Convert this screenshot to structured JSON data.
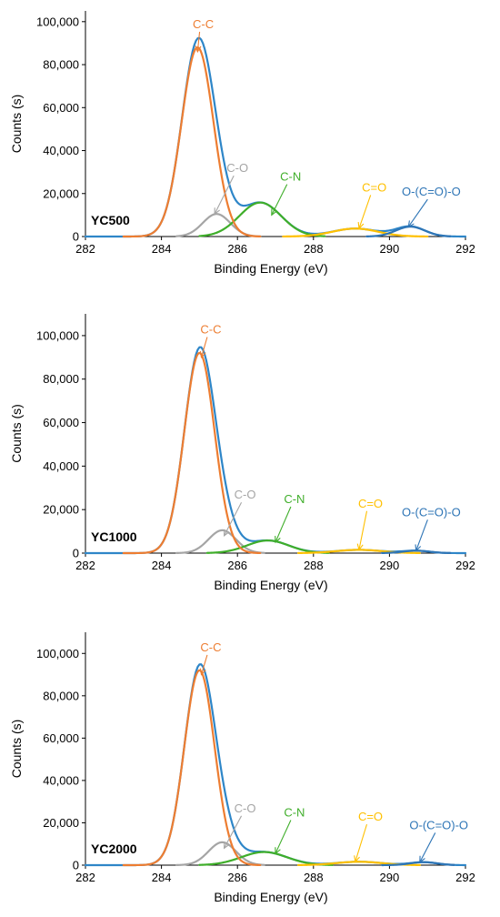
{
  "colors": {
    "envelope": "#2E86C8",
    "C-C": "#ED7D31",
    "C-O": "#A5A5A5",
    "C-N": "#3FAE2A",
    "C=O": "#FFC000",
    "O-(C=O)-O": "#2E75B6",
    "axis": "#000000"
  },
  "chart_data": [
    {
      "type": "line",
      "panel_label": "YC500",
      "xlabel": "Binding Energy (eV)",
      "ylabel": "Counts (s)",
      "xlim": [
        282,
        292
      ],
      "ylim": [
        0,
        105000
      ],
      "xticks": [
        "282",
        "284",
        "286",
        "288",
        "290",
        "292"
      ],
      "yticks": [
        "0",
        "20,000",
        "40,000",
        "60,000",
        "80,000",
        "100,000"
      ],
      "grid": false,
      "components": [
        {
          "name": "C-C",
          "center": 284.95,
          "amplitude": 88000,
          "sigma": 0.42,
          "range": [
            283.0,
            286.6
          ]
        },
        {
          "name": "C-O",
          "center": 285.45,
          "amplitude": 10500,
          "sigma": 0.36,
          "range": [
            284.4,
            286.6
          ]
        },
        {
          "name": "C-N",
          "center": 286.6,
          "amplitude": 15800,
          "sigma": 0.55,
          "range": [
            285.0,
            288.3
          ]
        },
        {
          "name": "C=O",
          "center": 289.1,
          "amplitude": 3700,
          "sigma": 0.6,
          "range": [
            287.2,
            291.0
          ]
        },
        {
          "name": "O-(C=O)-O",
          "center": 290.55,
          "amplitude": 4600,
          "sigma": 0.38,
          "range": [
            289.4,
            291.6
          ]
        }
      ],
      "envelope": {
        "peak": 90500
      },
      "annotations": [
        {
          "text": "C-C",
          "component": "C-C",
          "label_x": 285.1,
          "label_y": 97000,
          "target_x": 284.95,
          "target_y": 86000
        },
        {
          "text": "C-O",
          "component": "C-O",
          "label_x": 286.0,
          "label_y": 30000,
          "target_x": 285.4,
          "target_y": 10500
        },
        {
          "text": "C-N",
          "component": "C-N",
          "label_x": 287.4,
          "label_y": 26000,
          "target_x": 286.9,
          "target_y": 10000
        },
        {
          "text": "C=O",
          "component": "C=O",
          "label_x": 289.6,
          "label_y": 21000,
          "target_x": 289.2,
          "target_y": 3800
        },
        {
          "text": "O-(C=O)-O",
          "component": "O-(C=O)-O",
          "label_x": 291.1,
          "label_y": 19000,
          "target_x": 290.5,
          "target_y": 4500
        }
      ]
    },
    {
      "type": "line",
      "panel_label": "YC1000",
      "xlabel": "Binding Energy (eV)",
      "ylabel": "Counts (s)",
      "xlim": [
        282,
        292
      ],
      "ylim": [
        0,
        110000
      ],
      "xticks": [
        "282",
        "284",
        "286",
        "288",
        "290",
        "292"
      ],
      "yticks": [
        "0",
        "20,000",
        "40,000",
        "60,000",
        "80,000",
        "100,000"
      ],
      "grid": false,
      "components": [
        {
          "name": "C-C",
          "center": 285.0,
          "amplitude": 92000,
          "sigma": 0.4,
          "range": [
            283.0,
            286.6
          ]
        },
        {
          "name": "C-O",
          "center": 285.6,
          "amplitude": 10500,
          "sigma": 0.36,
          "range": [
            284.4,
            286.7
          ]
        },
        {
          "name": "C-N",
          "center": 286.8,
          "amplitude": 5800,
          "sigma": 0.55,
          "range": [
            285.2,
            288.4
          ]
        },
        {
          "name": "C=O",
          "center": 289.2,
          "amplitude": 1500,
          "sigma": 0.6,
          "range": [
            287.6,
            290.8
          ]
        },
        {
          "name": "O-(C=O)-O",
          "center": 290.7,
          "amplitude": 1100,
          "sigma": 0.35,
          "range": [
            289.8,
            291.6
          ]
        }
      ],
      "envelope": {
        "peak": 94500
      },
      "annotations": [
        {
          "text": "C-C",
          "component": "C-C",
          "label_x": 285.3,
          "label_y": 101000,
          "target_x": 285.05,
          "target_y": 90000
        },
        {
          "text": "C-O",
          "component": "C-O",
          "label_x": 286.2,
          "label_y": 25000,
          "target_x": 285.65,
          "target_y": 8000
        },
        {
          "text": "C-N",
          "component": "C-N",
          "label_x": 287.5,
          "label_y": 23000,
          "target_x": 287.0,
          "target_y": 5000
        },
        {
          "text": "C=O",
          "component": "C=O",
          "label_x": 289.5,
          "label_y": 21000,
          "target_x": 289.2,
          "target_y": 1500
        },
        {
          "text": "O-(C=O)-O",
          "component": "O-(C=O)-O",
          "label_x": 291.1,
          "label_y": 17000,
          "target_x": 290.7,
          "target_y": 1100
        }
      ]
    },
    {
      "type": "line",
      "panel_label": "YC2000",
      "xlabel": "Binding Energy (eV)",
      "ylabel": "Counts (s)",
      "xlim": [
        282,
        292
      ],
      "ylim": [
        0,
        110000
      ],
      "xticks": [
        "282",
        "284",
        "286",
        "288",
        "290",
        "292"
      ],
      "yticks": [
        "0",
        "20,000",
        "40,000",
        "60,000",
        "80,000",
        "100,000"
      ],
      "grid": false,
      "components": [
        {
          "name": "C-C",
          "center": 285.0,
          "amplitude": 92000,
          "sigma": 0.4,
          "range": [
            283.0,
            286.6
          ]
        },
        {
          "name": "C-O",
          "center": 285.6,
          "amplitude": 10800,
          "sigma": 0.36,
          "range": [
            284.4,
            286.7
          ]
        },
        {
          "name": "C-N",
          "center": 286.7,
          "amplitude": 6200,
          "sigma": 0.6,
          "range": [
            285.0,
            288.5
          ]
        },
        {
          "name": "C=O",
          "center": 289.2,
          "amplitude": 1600,
          "sigma": 0.6,
          "range": [
            287.6,
            290.8
          ]
        },
        {
          "name": "O-(C=O)-O",
          "center": 290.9,
          "amplitude": 1400,
          "sigma": 0.35,
          "range": [
            289.8,
            291.7
          ]
        }
      ],
      "envelope": {
        "peak": 94500
      },
      "annotations": [
        {
          "text": "C-C",
          "component": "C-C",
          "label_x": 285.3,
          "label_y": 101000,
          "target_x": 285.05,
          "target_y": 90000
        },
        {
          "text": "C-O",
          "component": "C-O",
          "label_x": 286.2,
          "label_y": 25000,
          "target_x": 285.65,
          "target_y": 8000
        },
        {
          "text": "C-N",
          "component": "C-N",
          "label_x": 287.5,
          "label_y": 23000,
          "target_x": 287.0,
          "target_y": 5500
        },
        {
          "text": "C=O",
          "component": "C=O",
          "label_x": 289.5,
          "label_y": 21000,
          "target_x": 289.1,
          "target_y": 1600
        },
        {
          "text": "O-(C=O)-O",
          "component": "O-(C=O)-O",
          "label_x": 291.3,
          "label_y": 17000,
          "target_x": 290.8,
          "target_y": 1400
        }
      ]
    }
  ]
}
